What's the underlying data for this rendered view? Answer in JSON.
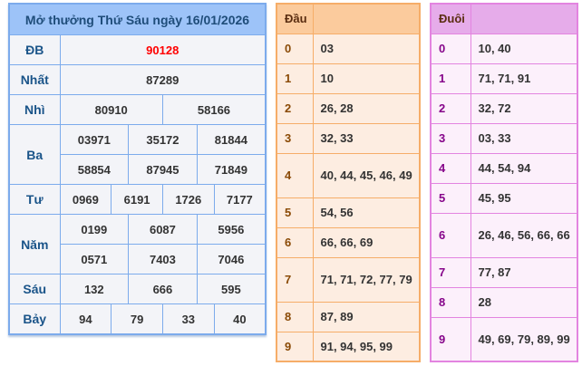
{
  "results": {
    "title": "Mở thưởng Thứ Sáu ngày 16/01/2026",
    "labels": {
      "db": "ĐB",
      "nhat": "Nhất",
      "nhi": "Nhì",
      "ba": "Ba",
      "tu": "Tư",
      "nam": "Năm",
      "sau": "Sáu",
      "bay": "Bảy"
    },
    "db": "90128",
    "nhat": "87289",
    "nhi": [
      "80910",
      "58166"
    ],
    "ba": [
      "03971",
      "35172",
      "81844",
      "58854",
      "87945",
      "71849"
    ],
    "tu": [
      "0969",
      "6191",
      "1726",
      "7177"
    ],
    "nam": [
      "0199",
      "6087",
      "5956",
      "0571",
      "7403",
      "7046"
    ],
    "sau": [
      "132",
      "666",
      "595"
    ],
    "bay": [
      "94",
      "79",
      "33",
      "40"
    ],
    "special_color": "#ff0000"
  },
  "dau": {
    "header": "Đầu",
    "rows": [
      {
        "d": "0",
        "v": "03"
      },
      {
        "d": "1",
        "v": "10"
      },
      {
        "d": "2",
        "v": "26, 28"
      },
      {
        "d": "3",
        "v": "32, 33"
      },
      {
        "d": "4",
        "v": "40, 44, 45, 46, 49"
      },
      {
        "d": "5",
        "v": "54, 56"
      },
      {
        "d": "6",
        "v": "66, 66, 69"
      },
      {
        "d": "7",
        "v": "71, 71, 72, 77, 79"
      },
      {
        "d": "8",
        "v": "87, 89"
      },
      {
        "d": "9",
        "v": "91, 94, 95, 99"
      }
    ]
  },
  "duoi": {
    "header": "Đuôi",
    "rows": [
      {
        "d": "0",
        "v": "10, 40"
      },
      {
        "d": "1",
        "v": "71, 71, 91"
      },
      {
        "d": "2",
        "v": "32, 72"
      },
      {
        "d": "3",
        "v": "03, 33"
      },
      {
        "d": "4",
        "v": "44, 54, 94"
      },
      {
        "d": "5",
        "v": "45, 95"
      },
      {
        "d": "6",
        "v": "26, 46, 56, 66, 66"
      },
      {
        "d": "7",
        "v": "77, 87"
      },
      {
        "d": "8",
        "v": "28"
      },
      {
        "d": "9",
        "v": "49, 69, 79, 89, 99"
      }
    ]
  }
}
